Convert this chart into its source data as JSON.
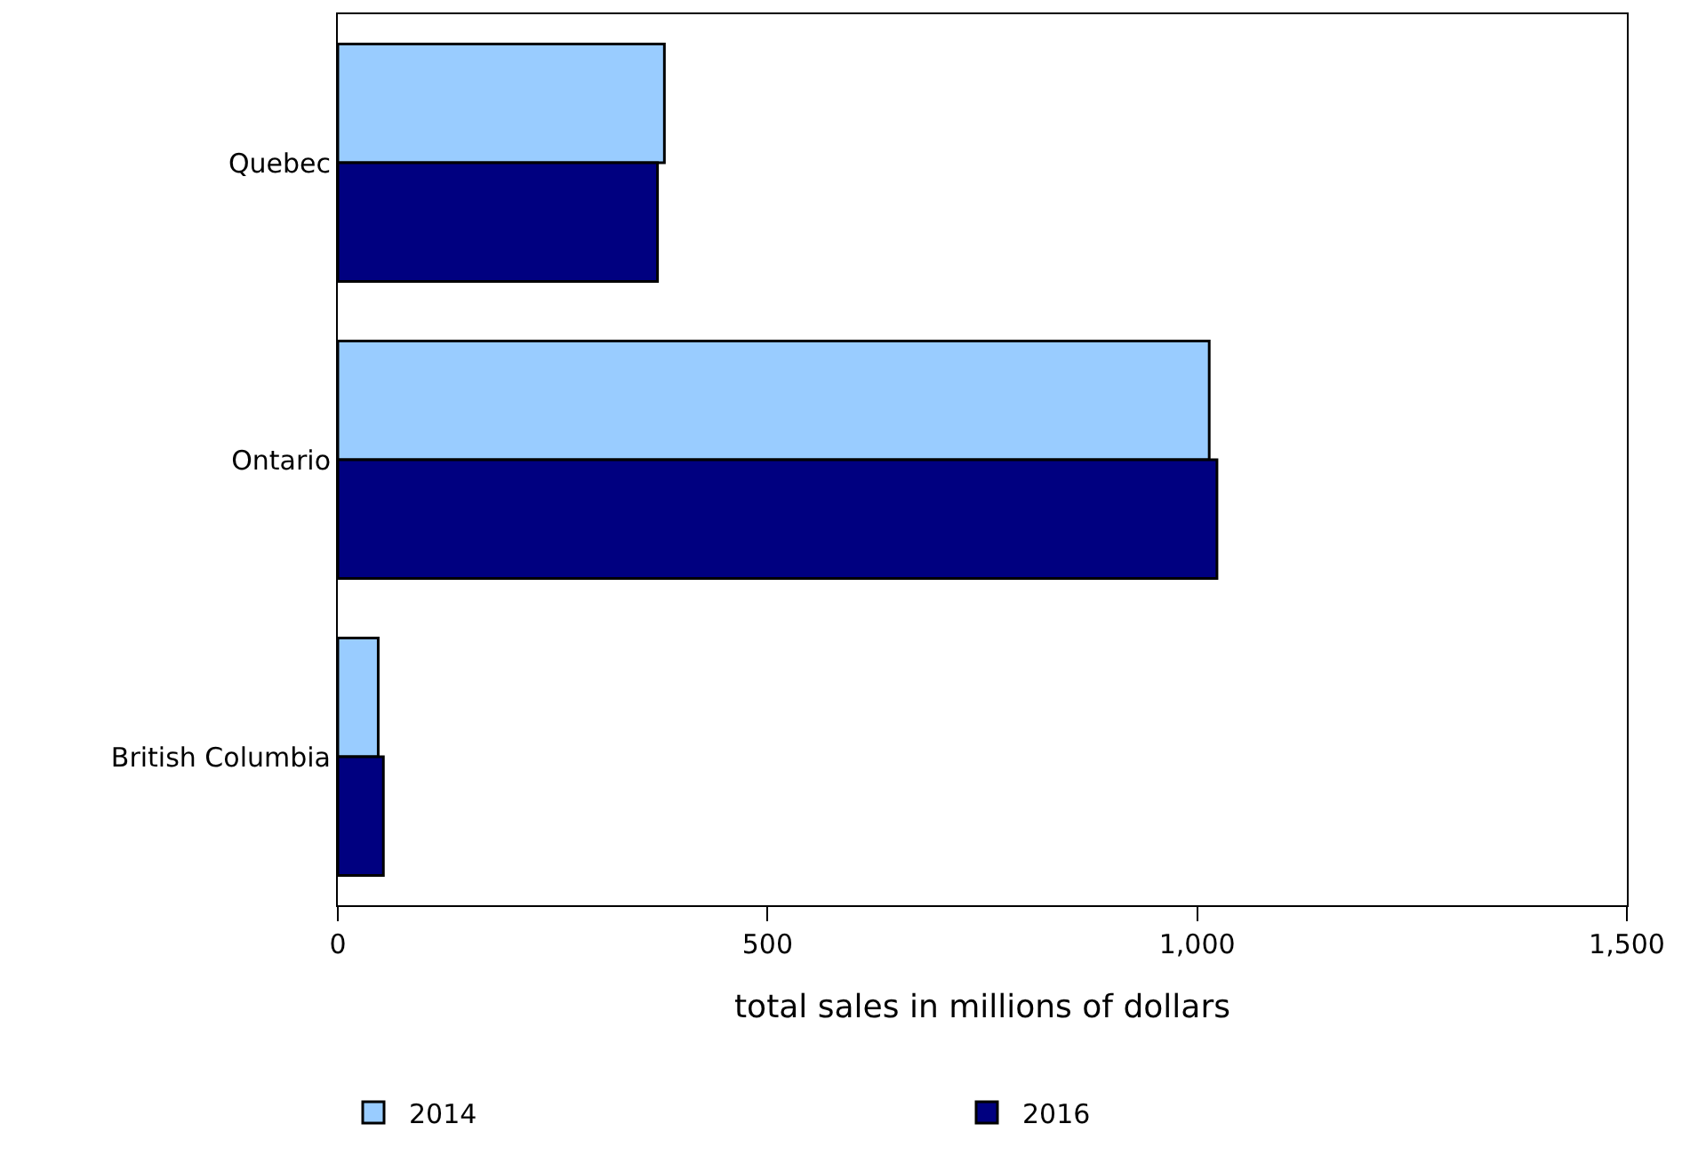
{
  "chart_data": {
    "type": "bar",
    "orientation": "horizontal",
    "categories": [
      "Quebec",
      "Ontario",
      "British Columbia"
    ],
    "series": [
      {
        "name": "2014",
        "color": "#99ccff",
        "values": [
          380,
          1014,
          47
        ]
      },
      {
        "name": "2016",
        "color": "#000080",
        "values": [
          372,
          1023,
          53
        ]
      }
    ],
    "xlabel": "total sales in millions of dollars",
    "xlim": [
      0,
      1500
    ],
    "xticks": [
      0,
      500,
      {
        "value": 1000,
        "label": "1,000"
      },
      {
        "value": 1500,
        "label": "1,500"
      }
    ],
    "legend": "bottom"
  }
}
